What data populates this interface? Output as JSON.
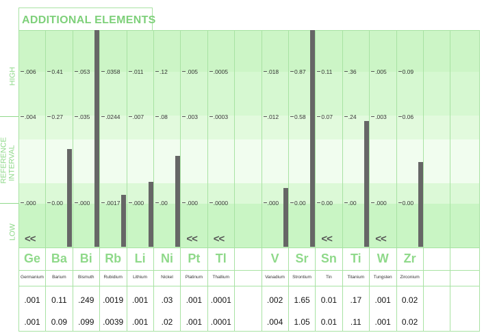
{
  "title": "ADDITIONAL ELEMENTS",
  "axis": {
    "high": "HIGH",
    "reference": "REFERENCE",
    "interval": "INTERVAL",
    "low": "LOW"
  },
  "colors": {
    "bright_green": "#7ed07a",
    "band_light": "#e8fbe6",
    "band_green": "#c9f5c4",
    "bar": "#666666"
  },
  "low_marker": "<<",
  "elements": [
    {
      "symbol": "Ge",
      "name": "Germanium",
      "high": ".006",
      "upper": ".004",
      "lower": ".000",
      "bar_level": null,
      "low_flag": true,
      "result_1": ".001",
      "result_2": ".001"
    },
    {
      "symbol": "Ba",
      "name": "Barium",
      "high": "0.41",
      "upper": "0.27",
      "lower": "0.00",
      "bar_level": 0.45,
      "low_flag": false,
      "result_1": "0.11",
      "result_2": "0.09"
    },
    {
      "symbol": "Bi",
      "name": "Bismuth",
      "high": ".053",
      "upper": ".035",
      "lower": ".000",
      "bar_level": 1.0,
      "low_flag": false,
      "result_1": ".249",
      "result_2": ".099"
    },
    {
      "symbol": "Rb",
      "name": "Rubidium",
      "high": ".0358",
      "upper": ".0244",
      "lower": ".0017",
      "bar_level": 0.24,
      "low_flag": false,
      "result_1": ".0019",
      "result_2": ".0039"
    },
    {
      "symbol": "Li",
      "name": "Lithium",
      "high": ".011",
      "upper": ".007",
      "lower": ".000",
      "bar_level": 0.3,
      "low_flag": false,
      "result_1": ".001",
      "result_2": ".001"
    },
    {
      "symbol": "Ni",
      "name": "Nickel",
      "high": ".12",
      "upper": ".08",
      "lower": ".00",
      "bar_level": 0.42,
      "low_flag": false,
      "result_1": ".03",
      "result_2": ".02"
    },
    {
      "symbol": "Pt",
      "name": "Platinum",
      "high": ".005",
      "upper": ".003",
      "lower": ".000",
      "bar_level": null,
      "low_flag": true,
      "result_1": ".001",
      "result_2": ".001"
    },
    {
      "symbol": "Tl",
      "name": "Thallium",
      "high": ".0005",
      "upper": ".0003",
      "lower": ".0000",
      "bar_level": null,
      "low_flag": true,
      "result_1": ".0001",
      "result_2": ".0001"
    },
    {
      "symbol": "",
      "name": "",
      "high": "",
      "upper": "",
      "lower": "",
      "bar_level": null,
      "low_flag": false,
      "result_1": "",
      "result_2": ""
    },
    {
      "symbol": "V",
      "name": "Vanadium",
      "high": ".018",
      "upper": ".012",
      "lower": ".000",
      "bar_level": 0.27,
      "low_flag": false,
      "result_1": ".002",
      "result_2": ".004"
    },
    {
      "symbol": "Sr",
      "name": "Strontium",
      "high": "0.87",
      "upper": "0.58",
      "lower": "0.00",
      "bar_level": 1.0,
      "low_flag": false,
      "result_1": "1.65",
      "result_2": "1.05"
    },
    {
      "symbol": "Sn",
      "name": "Tin",
      "high": "0.11",
      "upper": "0.07",
      "lower": "0.00",
      "bar_level": null,
      "low_flag": true,
      "result_1": "0.01",
      "result_2": "0.01"
    },
    {
      "symbol": "Ti",
      "name": "Titanium",
      "high": ".36",
      "upper": ".24",
      "lower": ".00",
      "bar_level": 0.58,
      "low_flag": false,
      "result_1": ".17",
      "result_2": ".11"
    },
    {
      "symbol": "W",
      "name": "Tungsten",
      "high": ".005",
      "upper": ".003",
      "lower": ".000",
      "bar_level": null,
      "low_flag": true,
      "result_1": ".001",
      "result_2": ".001"
    },
    {
      "symbol": "Zr",
      "name": "Zirconium",
      "high": "0.09",
      "upper": "0.06",
      "lower": "0.00",
      "bar_level": 0.39,
      "low_flag": false,
      "result_1": "0.02",
      "result_2": "0.02"
    },
    {
      "symbol": "",
      "name": "",
      "high": "",
      "upper": "",
      "lower": "",
      "bar_level": null,
      "low_flag": false,
      "result_1": "",
      "result_2": ""
    },
    {
      "symbol": "",
      "name": "",
      "high": "",
      "upper": "",
      "lower": "",
      "bar_level": null,
      "low_flag": false,
      "result_1": "",
      "result_2": ""
    }
  ]
}
